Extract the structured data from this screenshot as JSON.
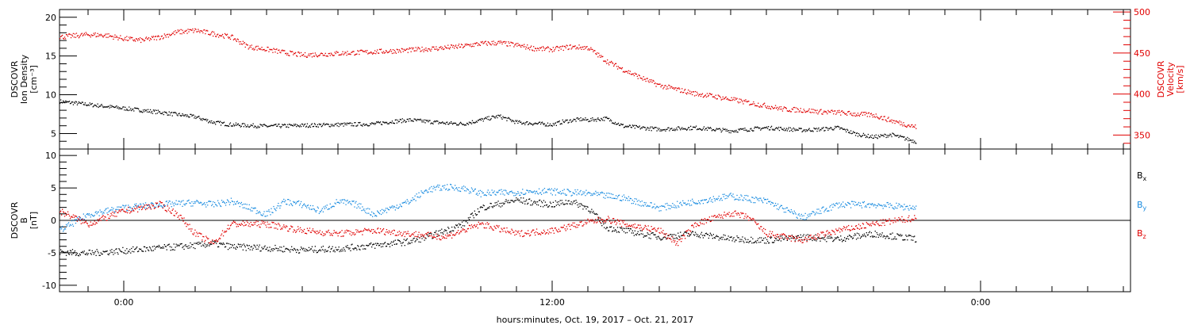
{
  "chart_data": [
    {
      "type": "scatter",
      "title": "",
      "xlabel": "",
      "ylabel": "DSCOVR\nIon Density\n[cm⁻³]",
      "ylim": [
        3,
        21
      ],
      "yticks": [
        5,
        10,
        15,
        20
      ],
      "y2label": "DSCOVR\nVelocity\n[km/s]",
      "y2lim": [
        333,
        503
      ],
      "y2ticks": [
        350,
        400,
        450,
        500
      ],
      "xlim_hours": [
        -1.8,
        28.2
      ],
      "grid": false,
      "series": [
        {
          "axis": "left",
          "color": "#000000",
          "x": [
            -1.8,
            -1,
            0,
            1,
            2,
            2.5,
            3,
            3.5,
            4,
            5,
            6,
            7,
            7.5,
            8,
            9,
            9.5,
            10,
            10.5,
            11,
            12,
            12.3,
            12.8,
            13,
            13.5,
            14,
            15,
            16,
            17,
            18,
            19,
            19.5,
            20,
            20.5,
            21,
            21.5,
            22.2
          ],
          "values": [
            9.2,
            8.8,
            8.3,
            7.8,
            7.2,
            6.5,
            6.2,
            6.1,
            6.0,
            6.1,
            6.2,
            6.3,
            6.6,
            6.8,
            6.4,
            6.3,
            6.8,
            7.3,
            6.5,
            6.2,
            6.6,
            6.9,
            6.8,
            7.0,
            6.0,
            5.6,
            5.8,
            5.4,
            5.8,
            5.5,
            5.6,
            5.8,
            5.0,
            4.6,
            4.9,
            4.0
          ]
        },
        {
          "axis": "right",
          "color": "#e00000",
          "x": [
            -1.8,
            -1,
            -0.5,
            0,
            0.5,
            1,
            1.5,
            2,
            2.5,
            3,
            3.5,
            4,
            4.5,
            5,
            6,
            7,
            8,
            9,
            9.5,
            10,
            10.5,
            11,
            11.5,
            12,
            12.5,
            13,
            13.5,
            14,
            14.5,
            15,
            15.5,
            16,
            16.5,
            17,
            17.5,
            18,
            18.5,
            19,
            19.5,
            20,
            20.5,
            21,
            21.5,
            22.2
          ],
          "values": [
            470,
            473,
            472,
            468,
            466,
            470,
            476,
            478,
            474,
            470,
            458,
            455,
            451,
            448,
            450,
            452,
            454,
            457,
            459,
            462,
            463,
            460,
            456,
            455,
            458,
            457,
            441,
            430,
            420,
            411,
            406,
            401,
            398,
            394,
            390,
            386,
            382,
            381,
            379,
            378,
            376,
            375,
            368,
            360
          ]
        }
      ]
    },
    {
      "type": "scatter",
      "title": "",
      "xlabel": "hours:minutes, Oct. 19, 2017 – Oct. 21, 2017",
      "ylabel": "DSCOVR\nB\n[nT]",
      "ylim": [
        -11,
        11
      ],
      "yticks": [
        -10,
        -5,
        0,
        5,
        10
      ],
      "x_tick_labels": [
        "0:00",
        "12:00",
        "0:00"
      ],
      "x_tick_hours": [
        0,
        12,
        24
      ],
      "xlim_hours": [
        -1.8,
        28.2
      ],
      "grid": false,
      "series": [
        {
          "name": "Bx",
          "color": "#000000",
          "x": [
            -1.8,
            -1,
            0,
            1,
            2,
            2.5,
            3,
            4,
            5,
            6,
            7,
            8,
            8.5,
            9,
            9.5,
            10,
            11,
            11.5,
            12,
            12.5,
            13,
            13.5,
            14,
            15,
            16,
            17,
            18,
            19,
            20,
            21,
            22.2
          ],
          "values": [
            -4.8,
            -5,
            -4.6,
            -4.2,
            -3.8,
            -3.5,
            -4,
            -4.2,
            -4.5,
            -4.3,
            -3.8,
            -3.2,
            -2.5,
            -1.5,
            -0.5,
            2.0,
            3.2,
            2.8,
            2.5,
            3.0,
            2.0,
            -1.0,
            -1.5,
            -2.5,
            -2.0,
            -2.8,
            -3.0,
            -2.5,
            -2.8,
            -2.0,
            -2.8
          ]
        },
        {
          "name": "By",
          "color": "#1a8ce0",
          "x": [
            -1.8,
            -1,
            0,
            1,
            2,
            2.5,
            3,
            4,
            4.5,
            5,
            5.5,
            6,
            6.5,
            7,
            8,
            8.5,
            9,
            9.5,
            10,
            11,
            11.5,
            12,
            13,
            14,
            15,
            16,
            17,
            18,
            19,
            20,
            21,
            22.2
          ],
          "values": [
            -1.5,
            1.0,
            2.0,
            2.5,
            2.8,
            2.5,
            3.0,
            1.0,
            3.0,
            2.5,
            1.5,
            3.0,
            2.5,
            1.0,
            3.0,
            4.8,
            5.2,
            5.0,
            4.2,
            4.4,
            4.6,
            4.5,
            4.2,
            3.5,
            2.0,
            3.0,
            3.8,
            3.0,
            0.5,
            2.5,
            2.5,
            2.0
          ]
        },
        {
          "name": "Bz",
          "color": "#e00000",
          "x": [
            -1.8,
            -1,
            0,
            1,
            1.5,
            2,
            2.5,
            3,
            4,
            5,
            6,
            7,
            8,
            9,
            10,
            11,
            12,
            13,
            13.5,
            14,
            15,
            15.5,
            16,
            17,
            17.5,
            18,
            19,
            20,
            21,
            22.2
          ],
          "values": [
            1.5,
            -0.5,
            1.5,
            2.5,
            1.0,
            -2.0,
            -3.5,
            -0.5,
            -0.5,
            -1.5,
            -2.0,
            -1.5,
            -2.0,
            -2.5,
            -0.5,
            -2.0,
            -1.5,
            -0.2,
            0.3,
            -0.5,
            -1.5,
            -3.5,
            -0.5,
            1.2,
            0.5,
            -2.0,
            -3.0,
            -1.5,
            -0.5,
            0.5
          ]
        }
      ]
    }
  ]
}
